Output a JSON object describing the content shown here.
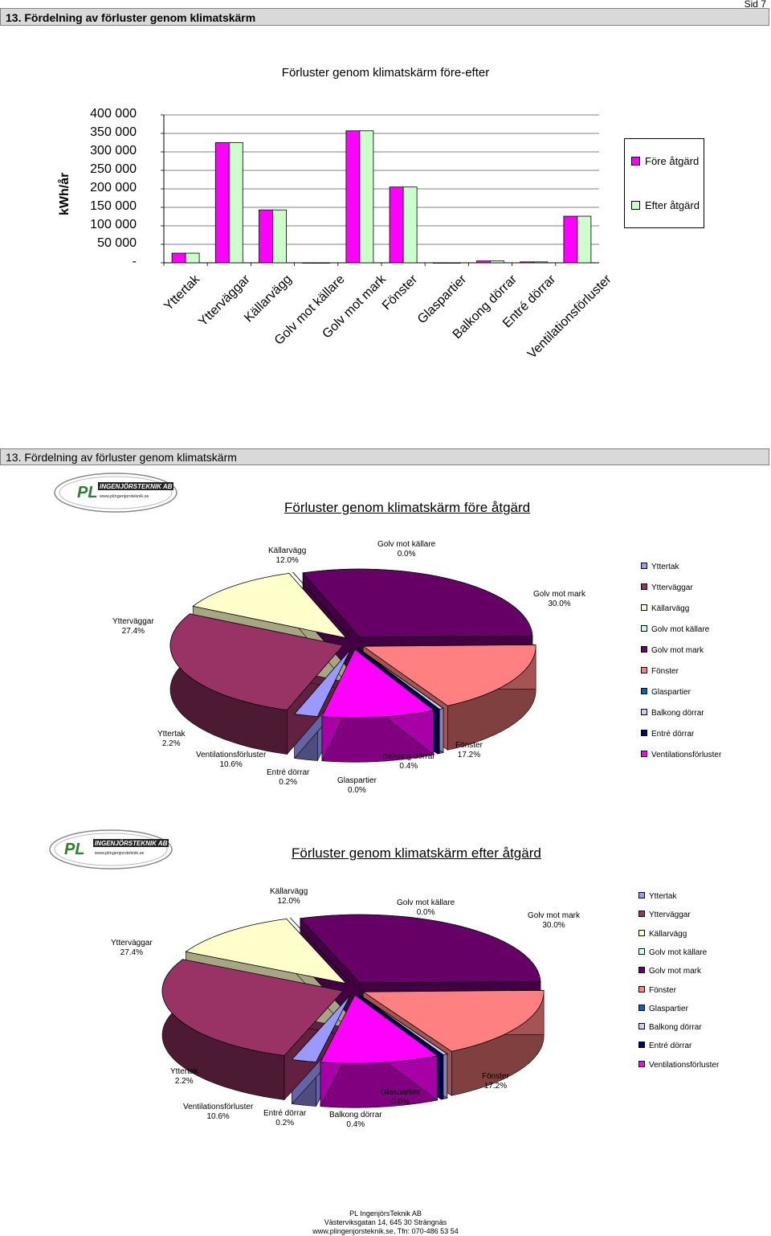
{
  "page": {
    "header_title": "13. Fördelning av förluster genom klimatskärm",
    "page_number": "Sid 7",
    "section_header": "13. Fördelning av förluster genom klimatskärm"
  },
  "logo": {
    "company": "INGENJÖRSTEKNIK AB",
    "url": "www.plingenjorsteknik.se",
    "initials": "PL"
  },
  "footer": {
    "line1": "PL IngenjörsTeknik AB",
    "line2": "Västerviksgatan 14, 645 30 Strängnäs",
    "line3": "www.plingenjorsteknik.se, Tfn: 070-486 53 54"
  },
  "chart_data": [
    {
      "type": "bar",
      "title": "Förluster genom klimatskärm före-efter",
      "ylabel": "kWh/år",
      "ylim": [
        0,
        400000
      ],
      "yticks": [
        "400 000",
        "350 000",
        "300 000",
        "250 000",
        "200 000",
        "150 000",
        "100 000",
        "50 000",
        "-"
      ],
      "categories": [
        "Yttertak",
        "Ytterväggar",
        "Källarvägg",
        "Golv mot källare",
        "Golv mot mark",
        "Fönster",
        "Glaspartier",
        "Balkong dörrar",
        "Entré dörrar",
        "Ventilationsförluster"
      ],
      "series": [
        {
          "name": "Före åtgärd",
          "color": "#ff00ff",
          "values": [
            26000,
            325000,
            143000,
            0,
            357000,
            205000,
            0,
            5000,
            2500,
            126000
          ]
        },
        {
          "name": "Efter åtgärd",
          "color": "#ccffcc",
          "values": [
            26000,
            325000,
            143000,
            0,
            357000,
            205000,
            0,
            5000,
            2500,
            126000
          ]
        }
      ],
      "legend": "right",
      "grid": true
    },
    {
      "type": "pie",
      "title": "Förluster genom klimatskärm före åtgärd",
      "slices": [
        {
          "label": "Yttertak",
          "pct": "2.2%",
          "value": 2.2,
          "color": "#9999ff"
        },
        {
          "label": "Ytterväggar",
          "pct": "27.4%",
          "value": 27.4,
          "color": "#993366"
        },
        {
          "label": "Källarvägg",
          "pct": "12.0%",
          "value": 12.0,
          "color": "#ffffcc"
        },
        {
          "label": "Golv mot källare",
          "pct": "0.0%",
          "value": 0.0,
          "color": "#ccffff"
        },
        {
          "label": "Golv mot mark",
          "pct": "30.0%",
          "value": 30.0,
          "color": "#660066"
        },
        {
          "label": "Fönster",
          "pct": "17.2%",
          "value": 17.2,
          "color": "#ff8080"
        },
        {
          "label": "Glaspartier",
          "pct": "0.0%",
          "value": 0.0,
          "color": "#0066cc"
        },
        {
          "label": "Balkong dörrar",
          "pct": "0.4%",
          "value": 0.4,
          "color": "#ccccff"
        },
        {
          "label": "Entré dörrar",
          "pct": "0.2%",
          "value": 0.2,
          "color": "#000080"
        },
        {
          "label": "Ventilationsförluster",
          "pct": "10.6%",
          "value": 10.6,
          "color": "#ff00ff"
        }
      ],
      "legend": "right"
    },
    {
      "type": "pie",
      "title": "Förluster genom klimatskärm efter åtgärd",
      "slices": [
        {
          "label": "Yttertak",
          "pct": "2.2%",
          "value": 2.2,
          "color": "#9999ff"
        },
        {
          "label": "Ytterväggar",
          "pct": "27.4%",
          "value": 27.4,
          "color": "#993366"
        },
        {
          "label": "Källarvägg",
          "pct": "12.0%",
          "value": 12.0,
          "color": "#ffffcc"
        },
        {
          "label": "Golv mot källare",
          "pct": "0.0%",
          "value": 0.0,
          "color": "#ccffff"
        },
        {
          "label": "Golv mot mark",
          "pct": "30.0%",
          "value": 30.0,
          "color": "#660066"
        },
        {
          "label": "Fönster",
          "pct": "17.2%",
          "value": 17.2,
          "color": "#ff8080"
        },
        {
          "label": "Glaspartier",
          "pct": "0.0%",
          "value": 0.0,
          "color": "#0066cc"
        },
        {
          "label": "Balkong dörrar",
          "pct": "0.4%",
          "value": 0.4,
          "color": "#ccccff"
        },
        {
          "label": "Entré dörrar",
          "pct": "0.2%",
          "value": 0.2,
          "color": "#000080"
        },
        {
          "label": "Ventilationsförluster",
          "pct": "10.6%",
          "value": 10.6,
          "color": "#ff00ff"
        }
      ],
      "legend": "right"
    }
  ]
}
